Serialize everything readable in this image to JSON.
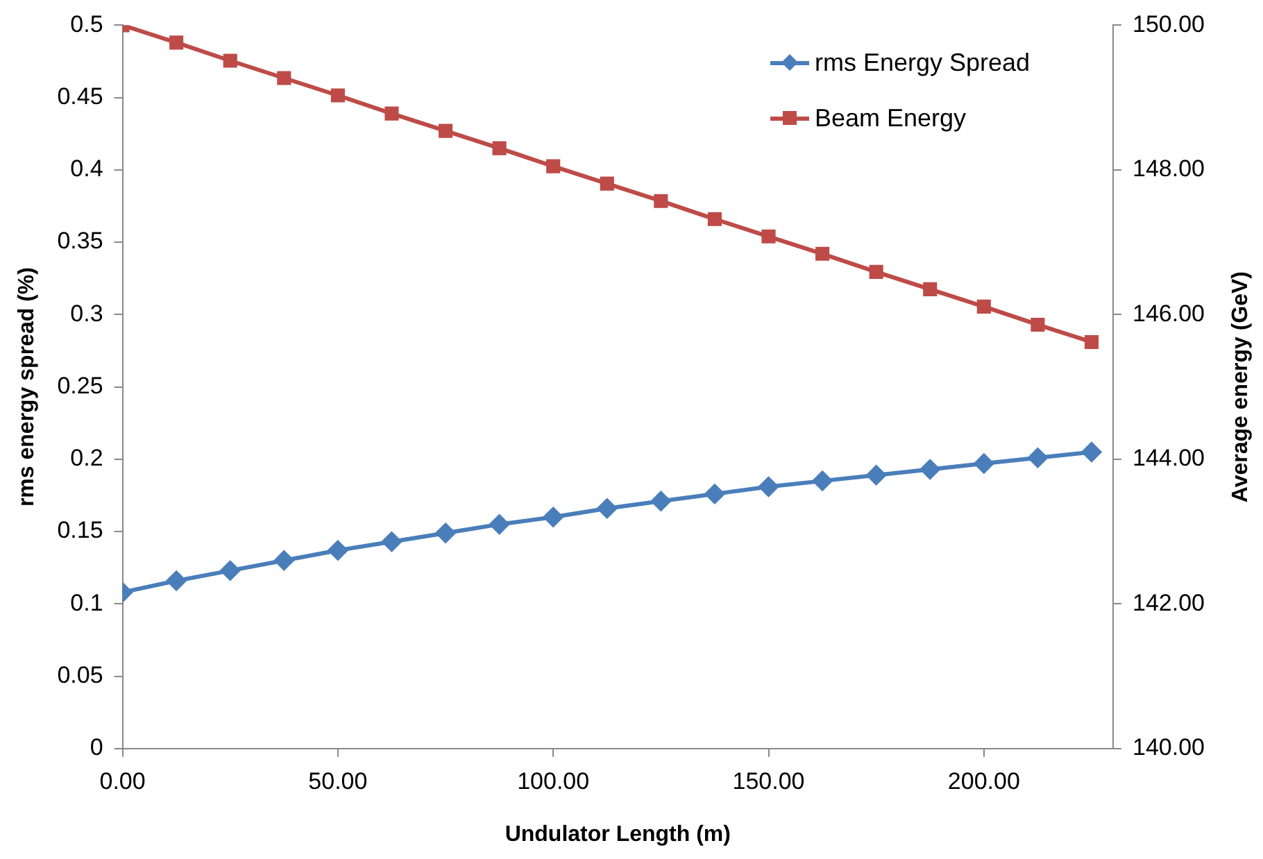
{
  "chart_data": {
    "type": "line",
    "xlabel": "Undulator Length (m)",
    "ylabel": "rms energy spread (%)",
    "y2label": "Average energy (GeV)",
    "x": [
      0,
      12.5,
      25,
      37.5,
      50,
      62.5,
      75,
      87.5,
      100,
      112.5,
      125,
      137.5,
      150,
      162.5,
      175,
      187.5,
      200,
      212.5,
      225
    ],
    "series": [
      {
        "name": "rms Energy Spread",
        "color": "#4a7ebb",
        "marker": "diamond",
        "values": [
          0.108,
          0.116,
          0.123,
          0.13,
          0.137,
          0.143,
          0.149,
          0.155,
          0.16,
          0.166,
          0.171,
          0.176,
          0.181,
          0.185,
          0.189,
          0.193,
          0.197,
          0.201,
          0.205
        ]
      },
      {
        "name": "Beam Energy",
        "color": "#be4b48",
        "marker": "square",
        "axis": "y2",
        "values": [
          150,
          149.76,
          149.51,
          149.27,
          149.03,
          148.78,
          148.54,
          148.3,
          148.05,
          147.81,
          147.57,
          147.32,
          147.08,
          146.84,
          146.59,
          146.35,
          146.11,
          145.86,
          145.62
        ]
      }
    ],
    "xlim": [
      0,
      230
    ],
    "xticks": [
      {
        "value": 0,
        "label": "0.00"
      },
      {
        "value": 50,
        "label": "50.00"
      },
      {
        "value": 100,
        "label": "100.00"
      },
      {
        "value": 150,
        "label": "150.00"
      },
      {
        "value": 200,
        "label": "200.00"
      }
    ],
    "ylim": [
      0,
      0.5
    ],
    "yticks": [
      0,
      0.05,
      0.1,
      0.15,
      0.2,
      0.25,
      0.3,
      0.35,
      0.4,
      0.45,
      0.5
    ],
    "y2lim": [
      140,
      150
    ],
    "y2ticks": [
      {
        "value": 140,
        "label": "140.00"
      },
      {
        "value": 142,
        "label": "142.00"
      },
      {
        "value": 144,
        "label": "144.00"
      },
      {
        "value": 146,
        "label": "146.00"
      },
      {
        "value": 148,
        "label": "148.00"
      },
      {
        "value": 150,
        "label": "150.00"
      }
    ],
    "grid": false,
    "legend": "top right",
    "line_style": "solid"
  }
}
